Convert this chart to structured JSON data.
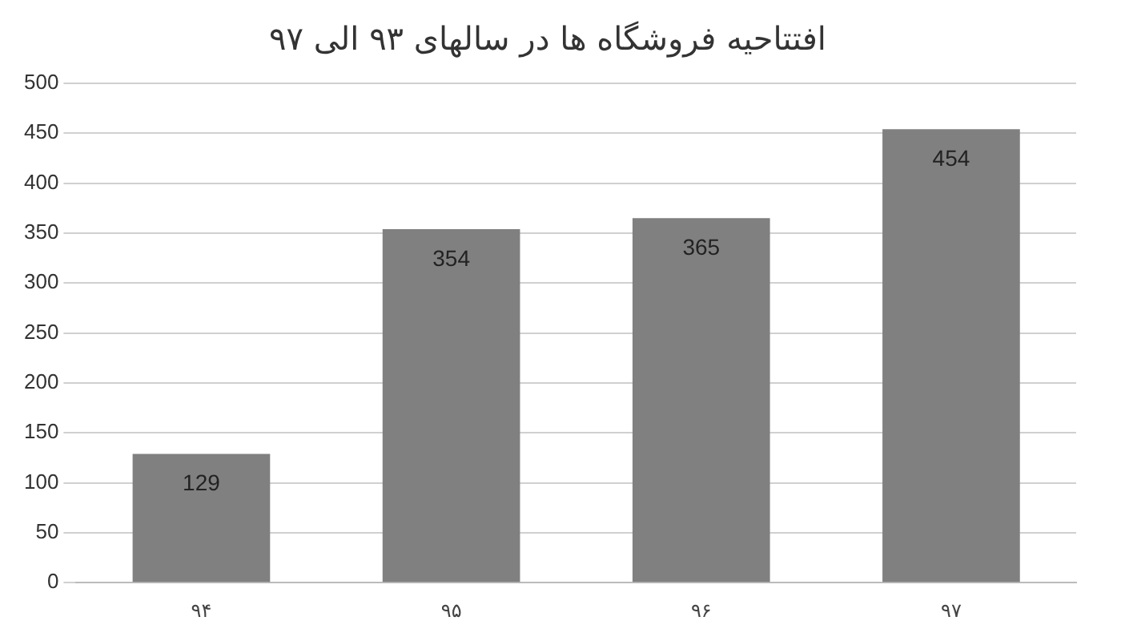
{
  "chart_data": {
    "type": "bar",
    "title": "افتتاحیه فروشگاه ها در سالهای ۹۳ الی ۹۷",
    "categories": [
      "۹۴",
      "۹۵",
      "۹۶",
      "۹۷"
    ],
    "values": [
      129,
      354,
      365,
      454
    ],
    "color": "#808080",
    "ylim": [
      0,
      500
    ],
    "yticks": [
      0,
      50,
      100,
      150,
      200,
      250,
      300,
      350,
      400,
      450,
      500
    ],
    "grid": "y",
    "data_labels": true
  }
}
